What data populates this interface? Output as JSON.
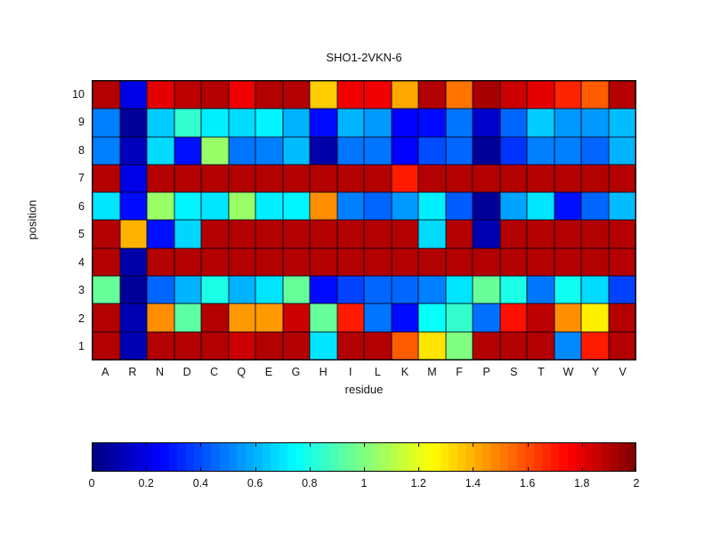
{
  "accent_colors": {
    "background": "#ffffff",
    "grid_line": "#000014",
    "text": "#111111"
  },
  "chart_data": {
    "type": "heatmap",
    "title": "SHO1-2VKN-6",
    "xlabel": "residue",
    "ylabel": "position",
    "colormap": "jet",
    "value_range": [
      0,
      2
    ],
    "categories": [
      "A",
      "R",
      "N",
      "D",
      "C",
      "Q",
      "E",
      "G",
      "H",
      "I",
      "L",
      "K",
      "M",
      "F",
      "P",
      "S",
      "T",
      "W",
      "Y",
      "V"
    ],
    "positions": [
      10,
      9,
      8,
      7,
      6,
      5,
      4,
      3,
      2,
      1
    ],
    "values": [
      [
        1.9,
        0.2,
        1.8,
        1.88,
        1.9,
        1.78,
        1.9,
        1.9,
        1.35,
        1.78,
        1.78,
        1.42,
        1.9,
        1.52,
        1.92,
        1.85,
        1.8,
        1.68,
        1.57,
        1.9
      ],
      [
        0.5,
        0.05,
        0.65,
        0.85,
        0.72,
        0.68,
        0.73,
        0.6,
        0.27,
        0.6,
        0.55,
        0.25,
        0.27,
        0.48,
        0.15,
        0.45,
        0.65,
        0.55,
        0.55,
        0.62
      ],
      [
        0.5,
        0.12,
        0.68,
        0.28,
        1.05,
        0.48,
        0.5,
        0.62,
        0.08,
        0.48,
        0.48,
        0.25,
        0.4,
        0.45,
        0.05,
        0.35,
        0.5,
        0.5,
        0.45,
        0.6
      ],
      [
        1.9,
        0.2,
        1.9,
        1.9,
        1.9,
        1.9,
        1.9,
        1.9,
        1.9,
        1.9,
        1.9,
        1.7,
        1.9,
        1.9,
        1.9,
        1.9,
        1.9,
        1.9,
        1.9,
        1.9
      ],
      [
        0.7,
        0.27,
        1.05,
        0.73,
        0.7,
        1.05,
        0.72,
        0.73,
        1.47,
        0.5,
        0.45,
        0.55,
        0.72,
        0.43,
        0.05,
        0.57,
        0.7,
        0.28,
        0.45,
        0.62
      ],
      [
        1.9,
        1.4,
        0.28,
        0.67,
        1.9,
        1.9,
        1.9,
        1.9,
        1.9,
        1.9,
        1.9,
        1.9,
        0.68,
        1.9,
        0.1,
        1.9,
        1.9,
        1.9,
        1.9,
        1.9
      ],
      [
        1.9,
        0.08,
        1.9,
        1.9,
        1.9,
        1.9,
        1.9,
        1.9,
        1.9,
        1.9,
        1.9,
        1.9,
        1.9,
        1.9,
        1.9,
        1.9,
        1.9,
        1.9,
        1.9,
        1.9
      ],
      [
        0.95,
        0.05,
        0.45,
        0.6,
        0.8,
        0.6,
        0.7,
        0.95,
        0.27,
        0.38,
        0.45,
        0.45,
        0.5,
        0.7,
        0.95,
        0.8,
        0.48,
        0.78,
        0.68,
        0.38
      ],
      [
        1.9,
        0.1,
        1.47,
        0.93,
        1.9,
        1.45,
        1.45,
        1.85,
        0.95,
        1.7,
        0.48,
        0.27,
        0.76,
        0.85,
        0.47,
        1.72,
        1.88,
        1.47,
        1.28,
        1.9
      ],
      [
        1.9,
        0.1,
        1.9,
        1.9,
        1.9,
        1.85,
        1.9,
        1.9,
        0.7,
        1.9,
        1.9,
        1.57,
        1.3,
        1.0,
        1.9,
        1.9,
        1.9,
        0.52,
        1.7,
        1.9
      ]
    ],
    "colorbar": {
      "tick_labels": [
        "0",
        "0.2",
        "0.4",
        "0.6",
        "0.8",
        "1",
        "1.2",
        "1.4",
        "1.6",
        "1.8",
        "2"
      ],
      "tick_values": [
        0,
        0.2,
        0.4,
        0.6,
        0.8,
        1,
        1.2,
        1.4,
        1.6,
        1.8,
        2
      ],
      "segments": 64,
      "orientation": "horizontal"
    },
    "legend": null,
    "grid": "cell-borders"
  }
}
